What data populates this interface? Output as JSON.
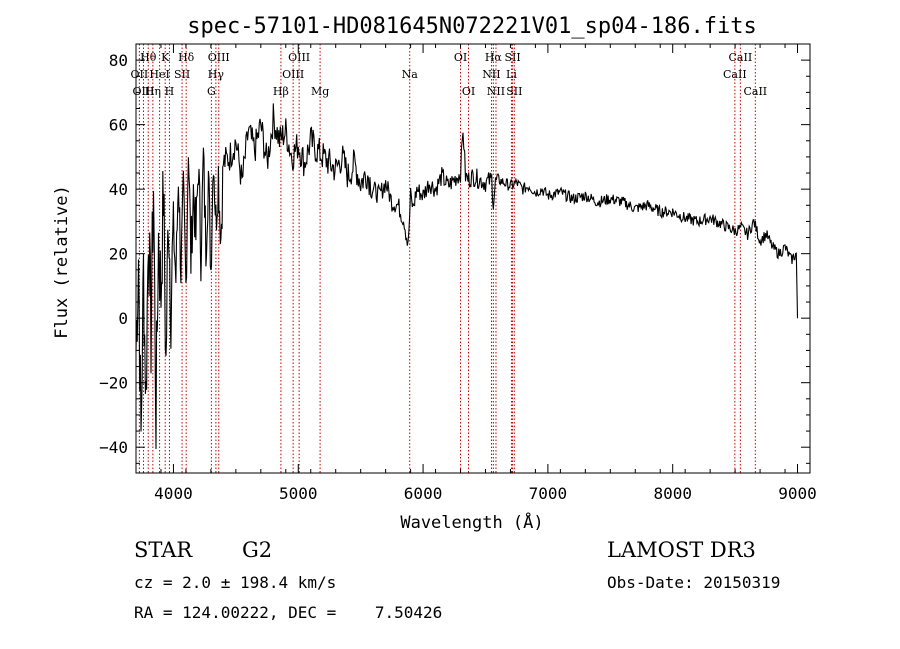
{
  "chart_data": {
    "type": "line",
    "title": "spec-57101-HD081645N072221V01_sp04-186.fits",
    "xlabel": "Wavelength (Å)",
    "ylabel": "Flux (relative)",
    "xlim": [
      3700,
      9100
    ],
    "ylim": [
      -48,
      85
    ],
    "xticks": [
      4000,
      5000,
      6000,
      7000,
      8000,
      9000
    ],
    "yticks": [
      -40,
      -20,
      0,
      20,
      40,
      60,
      80
    ],
    "grid": false,
    "series": [
      {
        "name": "flux",
        "color": "#000000",
        "x": [
          3700,
          3720,
          3740,
          3760,
          3780,
          3800,
          3820,
          3840,
          3860,
          3880,
          3900,
          3920,
          3940,
          3960,
          3980,
          4000,
          4020,
          4040,
          4060,
          4080,
          4100,
          4120,
          4140,
          4160,
          4180,
          4200,
          4220,
          4240,
          4260,
          4280,
          4300,
          4320,
          4340,
          4360,
          4380,
          4400,
          4450,
          4500,
          4550,
          4600,
          4650,
          4700,
          4750,
          4800,
          4850,
          4900,
          4950,
          5000,
          5050,
          5100,
          5150,
          5200,
          5250,
          5300,
          5350,
          5400,
          5450,
          5500,
          5550,
          5600,
          5650,
          5700,
          5750,
          5800,
          5850,
          5880,
          5900,
          5920,
          5950,
          6000,
          6050,
          6100,
          6150,
          6200,
          6250,
          6300,
          6320,
          6340,
          6360,
          6400,
          6450,
          6500,
          6550,
          6563,
          6580,
          6600,
          6650,
          6700,
          6750,
          6800,
          6850,
          6900,
          6950,
          7000,
          7100,
          7200,
          7300,
          7400,
          7500,
          7600,
          7700,
          7800,
          7900,
          8000,
          8100,
          8200,
          8300,
          8400,
          8500,
          8550,
          8600,
          8650,
          8700,
          8750,
          8800,
          8850,
          8900,
          8950,
          8990,
          9000
        ],
        "y": [
          -10,
          20,
          -38,
          15,
          -25,
          30,
          -5,
          42,
          -30,
          25,
          8,
          40,
          -15,
          35,
          5,
          28,
          12,
          45,
          15,
          38,
          10,
          55,
          18,
          40,
          25,
          48,
          20,
          50,
          22,
          45,
          15,
          52,
          30,
          45,
          25,
          48,
          50,
          55,
          42,
          58,
          52,
          60,
          48,
          62,
          55,
          58,
          50,
          54,
          48,
          55,
          52,
          50,
          48,
          46,
          50,
          44,
          48,
          42,
          45,
          40,
          38,
          42,
          36,
          35,
          30,
          22,
          38,
          34,
          40,
          38,
          42,
          40,
          44,
          41,
          43,
          45,
          59,
          44,
          43,
          44,
          43,
          42,
          43,
          36,
          42,
          43,
          42,
          41,
          42,
          40,
          41,
          39,
          40,
          38,
          39,
          37,
          38,
          36,
          37,
          36,
          34,
          35,
          33,
          33,
          31,
          30,
          31,
          29,
          27,
          28,
          26,
          30,
          24,
          26,
          22,
          20,
          22,
          18,
          20,
          0
        ]
      }
    ],
    "lines": [
      {
        "label": "Hθ",
        "x": 3798,
        "row": 1
      },
      {
        "label": "OII",
        "x": 3727,
        "row": 2
      },
      {
        "label": "OIII",
        "x": 3760,
        "row": 3
      },
      {
        "label": "K",
        "x": 3934,
        "row": 1
      },
      {
        "label": "Hη",
        "x": 3835,
        "row": 3
      },
      {
        "label": "HeI",
        "x": 3889,
        "row": 2
      },
      {
        "label": "H",
        "x": 3968,
        "row": 3
      },
      {
        "label": "Hδ",
        "x": 4102,
        "row": 1
      },
      {
        "label": "SII",
        "x": 4069,
        "row": 2
      },
      {
        "label": "OIII",
        "x": 4363,
        "row": 1
      },
      {
        "label": "Hγ",
        "x": 4340,
        "row": 2
      },
      {
        "label": "G",
        "x": 4304,
        "row": 3
      },
      {
        "label": "Hβ",
        "x": 4861,
        "row": 3
      },
      {
        "label": "OIII",
        "x": 5007,
        "row": 1
      },
      {
        "label": "OIII",
        "x": 4959,
        "row": 2
      },
      {
        "label": "Mg",
        "x": 5175,
        "row": 3
      },
      {
        "label": "Na",
        "x": 5893,
        "row": 2
      },
      {
        "label": "OI",
        "x": 6300,
        "row": 1
      },
      {
        "label": "OI",
        "x": 6364,
        "row": 3
      },
      {
        "label": "Hα",
        "x": 6563,
        "row": 1
      },
      {
        "label": "NII",
        "x": 6548,
        "row": 2
      },
      {
        "label": "NII",
        "x": 6584,
        "row": 3
      },
      {
        "label": "SII",
        "x": 6717,
        "row": 1
      },
      {
        "label": "Li",
        "x": 6708,
        "row": 2
      },
      {
        "label": "SII",
        "x": 6731,
        "row": 3
      },
      {
        "label": "CaII",
        "x": 8542,
        "row": 1
      },
      {
        "label": "CaII",
        "x": 8498,
        "row": 2
      },
      {
        "label": "CaII",
        "x": 8662,
        "row": 3
      }
    ],
    "colors": {
      "spectrum": "#000000",
      "axes": "#000000",
      "line_markers": "#cc0000"
    }
  },
  "info": {
    "object_class": "STAR",
    "subclass": "G2",
    "survey": "LAMOST DR3",
    "cz": "cz = 2.0 ± 198.4 km/s",
    "obs_date": "Obs-Date: 20150319",
    "coords": "RA = 124.00222, DEC =    7.50426"
  }
}
